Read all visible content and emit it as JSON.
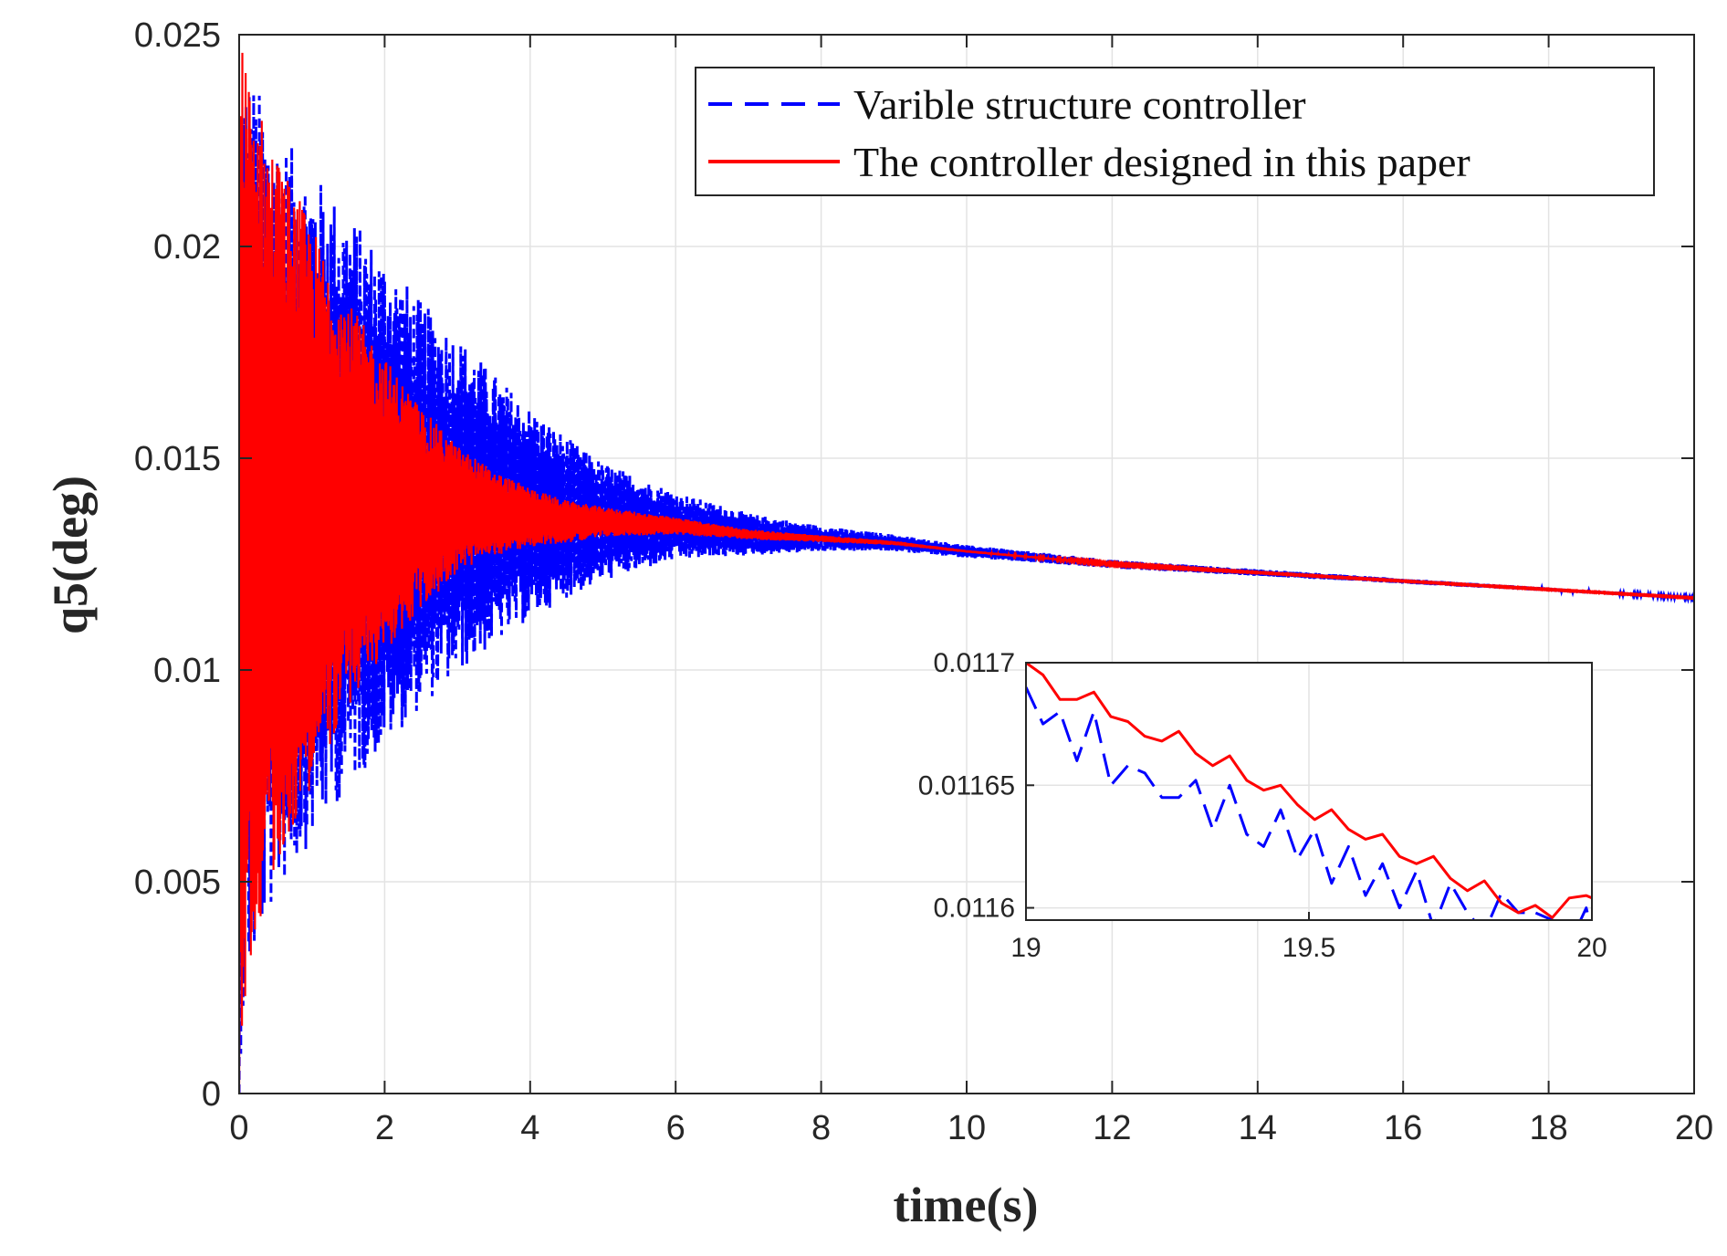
{
  "chart_data": {
    "type": "line",
    "title": "",
    "xlabel": "time(s)",
    "ylabel": "q5(deg)",
    "xlim": [
      0,
      20
    ],
    "ylim": [
      0,
      0.025
    ],
    "xticks": [
      0,
      2,
      4,
      6,
      8,
      10,
      12,
      14,
      16,
      18,
      20
    ],
    "xtick_labels": [
      "0",
      "2",
      "4",
      "6",
      "8",
      "10",
      "12",
      "14",
      "16",
      "18",
      "20"
    ],
    "yticks": [
      0,
      0.005,
      0.01,
      0.015,
      0.02,
      0.025
    ],
    "ytick_labels": [
      "0",
      "0.005",
      "0.01",
      "0.015",
      "0.02",
      "0.025"
    ],
    "grid": true,
    "legend_position": "top-right",
    "series": [
      {
        "name": "Varible structure controller",
        "color": "#0000ff",
        "style": "dashed",
        "envelope": {
          "t": [
            0,
            0.1,
            0.3,
            0.5,
            1,
            1.5,
            2,
            2.5,
            3,
            3.5,
            4,
            4.5,
            5,
            6,
            7,
            8,
            9,
            10,
            12,
            14,
            16,
            18,
            20
          ],
          "center": [
            0.0125,
            0.0133,
            0.0136,
            0.0137,
            0.0139,
            0.014,
            0.014,
            0.0139,
            0.0139,
            0.0138,
            0.0137,
            0.0136,
            0.0135,
            0.0134,
            0.0132,
            0.0131,
            0.013,
            0.0128,
            0.0125,
            0.0123,
            0.0121,
            0.0119,
            0.0117
          ],
          "halfwidth": [
            0.012,
            0.011,
            0.01,
            0.0091,
            0.0079,
            0.0068,
            0.0058,
            0.0048,
            0.004,
            0.0032,
            0.0025,
            0.0019,
            0.0014,
            0.0008,
            0.0005,
            0.0003,
            0.0002,
            0.00015,
            0.0001,
            8e-05,
            6e-05,
            4e-05,
            3e-05
          ]
        }
      },
      {
        "name": "The controller designed in this paper",
        "color": "#ff0000",
        "style": "solid",
        "envelope": {
          "t": [
            0,
            0.1,
            0.3,
            0.5,
            1,
            1.5,
            2,
            2.5,
            3,
            3.5,
            4,
            4.5,
            5,
            6,
            7,
            8,
            9,
            10,
            12,
            14,
            16,
            18,
            20
          ],
          "center": [
            0.0125,
            0.0135,
            0.0137,
            0.0138,
            0.0139,
            0.0139,
            0.0139,
            0.0138,
            0.0138,
            0.0137,
            0.0136,
            0.0135,
            0.0135,
            0.0134,
            0.0132,
            0.0131,
            0.013,
            0.0128,
            0.0125,
            0.0123,
            0.0121,
            0.0119,
            0.0117
          ],
          "halfwidth": [
            0.0125,
            0.011,
            0.0095,
            0.0085,
            0.0066,
            0.0048,
            0.0035,
            0.0024,
            0.0015,
            0.001,
            0.0007,
            0.0005,
            0.00035,
            0.0002,
            0.00012,
            8e-05,
            5e-05,
            3e-05,
            2e-05,
            1e-05,
            1e-05,
            1e-05,
            1e-05
          ]
        }
      }
    ],
    "inset": {
      "xlim": [
        19,
        20
      ],
      "ylim": [
        0.011595,
        0.0117
      ],
      "xticks": [
        19,
        19.5,
        20
      ],
      "xtick_labels": [
        "19",
        "19.5",
        "20"
      ],
      "yticks": [
        0.0116,
        0.01165,
        0.0117
      ],
      "ytick_labels": [
        "0.0116",
        "0.01165",
        "0.0117"
      ],
      "grid": true,
      "series": [
        {
          "name": "Varible structure controller",
          "color": "#0000ff",
          "style": "dashed",
          "x": [
            19.0,
            19.03,
            19.06,
            19.09,
            19.12,
            19.15,
            19.18,
            19.21,
            19.24,
            19.27,
            19.3,
            19.33,
            19.36,
            19.39,
            19.42,
            19.45,
            19.48,
            19.51,
            19.54,
            19.57,
            19.6,
            19.63,
            19.66,
            19.69,
            19.72,
            19.75,
            19.78,
            19.81,
            19.84,
            19.87,
            19.9,
            19.93,
            19.96,
            19.99,
            20.0
          ],
          "y": [
            0.01169,
            0.011675,
            0.01168,
            0.01166,
            0.01168,
            0.01165,
            0.011658,
            0.011655,
            0.011645,
            0.011645,
            0.011652,
            0.011632,
            0.01165,
            0.01163,
            0.011625,
            0.01164,
            0.01162,
            0.011632,
            0.01161,
            0.011625,
            0.011605,
            0.011618,
            0.0116,
            0.011615,
            0.011592,
            0.01161,
            0.011598,
            0.01159,
            0.011606,
            0.011598,
            0.011598,
            0.011595,
            0.011585,
            0.0116,
            0.01159
          ]
        },
        {
          "name": "The controller designed in this paper",
          "color": "#ff0000",
          "style": "solid",
          "x": [
            19.0,
            19.03,
            19.06,
            19.09,
            19.12,
            19.15,
            19.18,
            19.21,
            19.24,
            19.27,
            19.3,
            19.33,
            19.36,
            19.39,
            19.42,
            19.45,
            19.48,
            19.51,
            19.54,
            19.57,
            19.6,
            19.63,
            19.66,
            19.69,
            19.72,
            19.75,
            19.78,
            19.81,
            19.84,
            19.87,
            19.9,
            19.93,
            19.96,
            19.99,
            20.0
          ],
          "y": [
            0.0117,
            0.011695,
            0.011685,
            0.011685,
            0.011688,
            0.011678,
            0.011676,
            0.01167,
            0.011668,
            0.011672,
            0.011663,
            0.011658,
            0.011662,
            0.011652,
            0.011648,
            0.01165,
            0.011642,
            0.011636,
            0.01164,
            0.011632,
            0.011628,
            0.01163,
            0.011621,
            0.011618,
            0.011621,
            0.011612,
            0.011607,
            0.011611,
            0.011602,
            0.011598,
            0.011601,
            0.011596,
            0.011604,
            0.011605,
            0.011604
          ]
        }
      ]
    }
  }
}
